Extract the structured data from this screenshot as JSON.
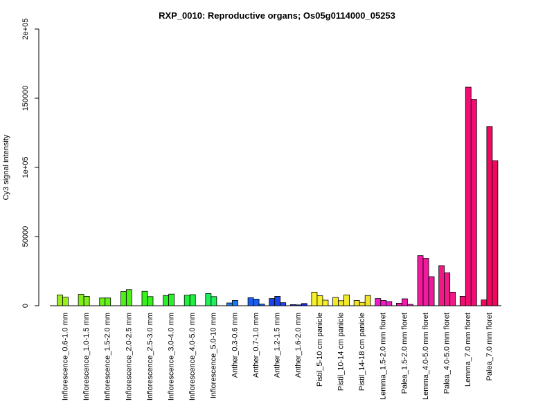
{
  "chart_data": {
    "type": "bar",
    "title": "RXP_0010: Reproductive organs; Os05g0114000_05253",
    "xlabel": "",
    "ylabel": "Cy3 signal intensity",
    "ylim": [
      0,
      200000
    ],
    "y_ticks": [
      0,
      50000,
      100000,
      150000,
      200000
    ],
    "y_tick_labels": [
      "0",
      "50000",
      "1e+05",
      "150000",
      "2e+05"
    ],
    "grid": false,
    "groups": [
      {
        "label": "Inflorescence_0.6-1.0 mm",
        "color": "#9aef1a",
        "values": [
          7800,
          6200
        ]
      },
      {
        "label": "Inflorescence_1.0-1.5 mm",
        "color": "#80ef1a",
        "values": [
          8200,
          6800
        ]
      },
      {
        "label": "Inflorescence_1.5-2.0 mm",
        "color": "#68f01a",
        "values": [
          5600,
          5600
        ]
      },
      {
        "label": "Inflorescence_2.0-2.5 mm",
        "color": "#4ef01a",
        "values": [
          10200,
          11600
        ]
      },
      {
        "label": "Inflorescence_2.5-3.0 mm",
        "color": "#36f11a",
        "values": [
          10400,
          6600
        ]
      },
      {
        "label": "Inflorescence_3.0-4.0 mm",
        "color": "#27f225",
        "values": [
          7400,
          8400
        ]
      },
      {
        "label": "Inflorescence_4.0-5.0 mm",
        "color": "#1ef23e",
        "values": [
          7600,
          8000
        ]
      },
      {
        "label": "Inflorescence_5.0-10 mm",
        "color": "#1df25a",
        "values": [
          8800,
          6600
        ]
      },
      {
        "label": "Anther_0.3-0.6 mm",
        "color": "#1a7af0",
        "values": [
          2000,
          3800
        ]
      },
      {
        "label": "Anther_0.7-1.0 mm",
        "color": "#1a5ef0",
        "values": [
          5800,
          4800,
          1200
        ]
      },
      {
        "label": "Anther_1.2-1.5 mm",
        "color": "#1a44ee",
        "values": [
          5200,
          6800,
          2200
        ]
      },
      {
        "label": "Anther_1.6-2.0 mm",
        "color": "#1a28ee",
        "values": [
          800,
          600,
          1600
        ]
      },
      {
        "label": "Pistil_5-10 cm panicle",
        "color": "#f8f028",
        "values": [
          9800,
          7200,
          4000
        ]
      },
      {
        "label": "Pistil_10-14 cm panicle",
        "color": "#f2ea28",
        "values": [
          6000,
          3600,
          7800
        ]
      },
      {
        "label": "Pistil_14-18 cm panicle",
        "color": "#f0e428",
        "values": [
          3800,
          2400,
          7400
        ]
      },
      {
        "label": "Lemma_1.5-2.0 mm floret",
        "color": "#f01ac6",
        "values": [
          5200,
          3800,
          3000
        ]
      },
      {
        "label": "Palea_1.5-2.0 mm floret",
        "color": "#f01ab0",
        "values": [
          1800,
          5000,
          1000
        ]
      },
      {
        "label": "Lemma_4.0-5.0 mm floret",
        "color": "#f01a9c",
        "values": [
          36200,
          34200,
          21000
        ]
      },
      {
        "label": "Palea_4.0-5.0 mm floret",
        "color": "#f01a86",
        "values": [
          29000,
          23800,
          9800
        ]
      },
      {
        "label": "Lemma_7.0 mm floret",
        "color": "#f00e74",
        "values": [
          6800,
          158000,
          149200
        ]
      },
      {
        "label": "Palea_7.0 mm floret",
        "color": "#f0095e",
        "values": [
          4200,
          129600,
          104800
        ]
      }
    ]
  }
}
